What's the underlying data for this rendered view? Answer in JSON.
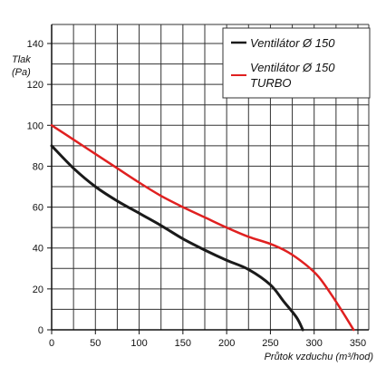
{
  "chart_data": {
    "type": "line",
    "ylabel_line1": "Tlak",
    "ylabel_line2": "(Pa)",
    "xlabel": "Průtok vzduchu (m³/hod)",
    "xlim": [
      0,
      360
    ],
    "ylim": [
      0,
      150
    ],
    "x_ticks": [
      0,
      50,
      100,
      150,
      200,
      250,
      300,
      350
    ],
    "y_ticks": [
      0,
      20,
      40,
      60,
      80,
      100,
      120,
      140
    ],
    "grid": true,
    "legend_position": "top-right",
    "series": [
      {
        "name": "Ventilátor Ø 150",
        "color": "#1a1a1a",
        "points": [
          [
            0,
            90
          ],
          [
            25,
            79
          ],
          [
            50,
            70
          ],
          [
            75,
            63
          ],
          [
            100,
            57
          ],
          [
            125,
            51
          ],
          [
            150,
            44.5
          ],
          [
            175,
            39
          ],
          [
            200,
            34
          ],
          [
            225,
            29.5
          ],
          [
            250,
            22
          ],
          [
            265,
            14
          ],
          [
            280,
            6
          ],
          [
            287,
            0
          ]
        ]
      },
      {
        "name_line1": "Ventilátor Ø 150",
        "name_line2": "TURBO",
        "color": "#e02020",
        "points": [
          [
            0,
            100
          ],
          [
            25,
            93
          ],
          [
            50,
            86
          ],
          [
            75,
            79
          ],
          [
            100,
            72
          ],
          [
            125,
            65.5
          ],
          [
            150,
            60
          ],
          [
            175,
            55
          ],
          [
            200,
            50
          ],
          [
            225,
            45.5
          ],
          [
            250,
            42
          ],
          [
            270,
            38
          ],
          [
            290,
            32
          ],
          [
            305,
            26
          ],
          [
            320,
            17
          ],
          [
            335,
            7
          ],
          [
            345,
            0
          ]
        ]
      }
    ]
  }
}
